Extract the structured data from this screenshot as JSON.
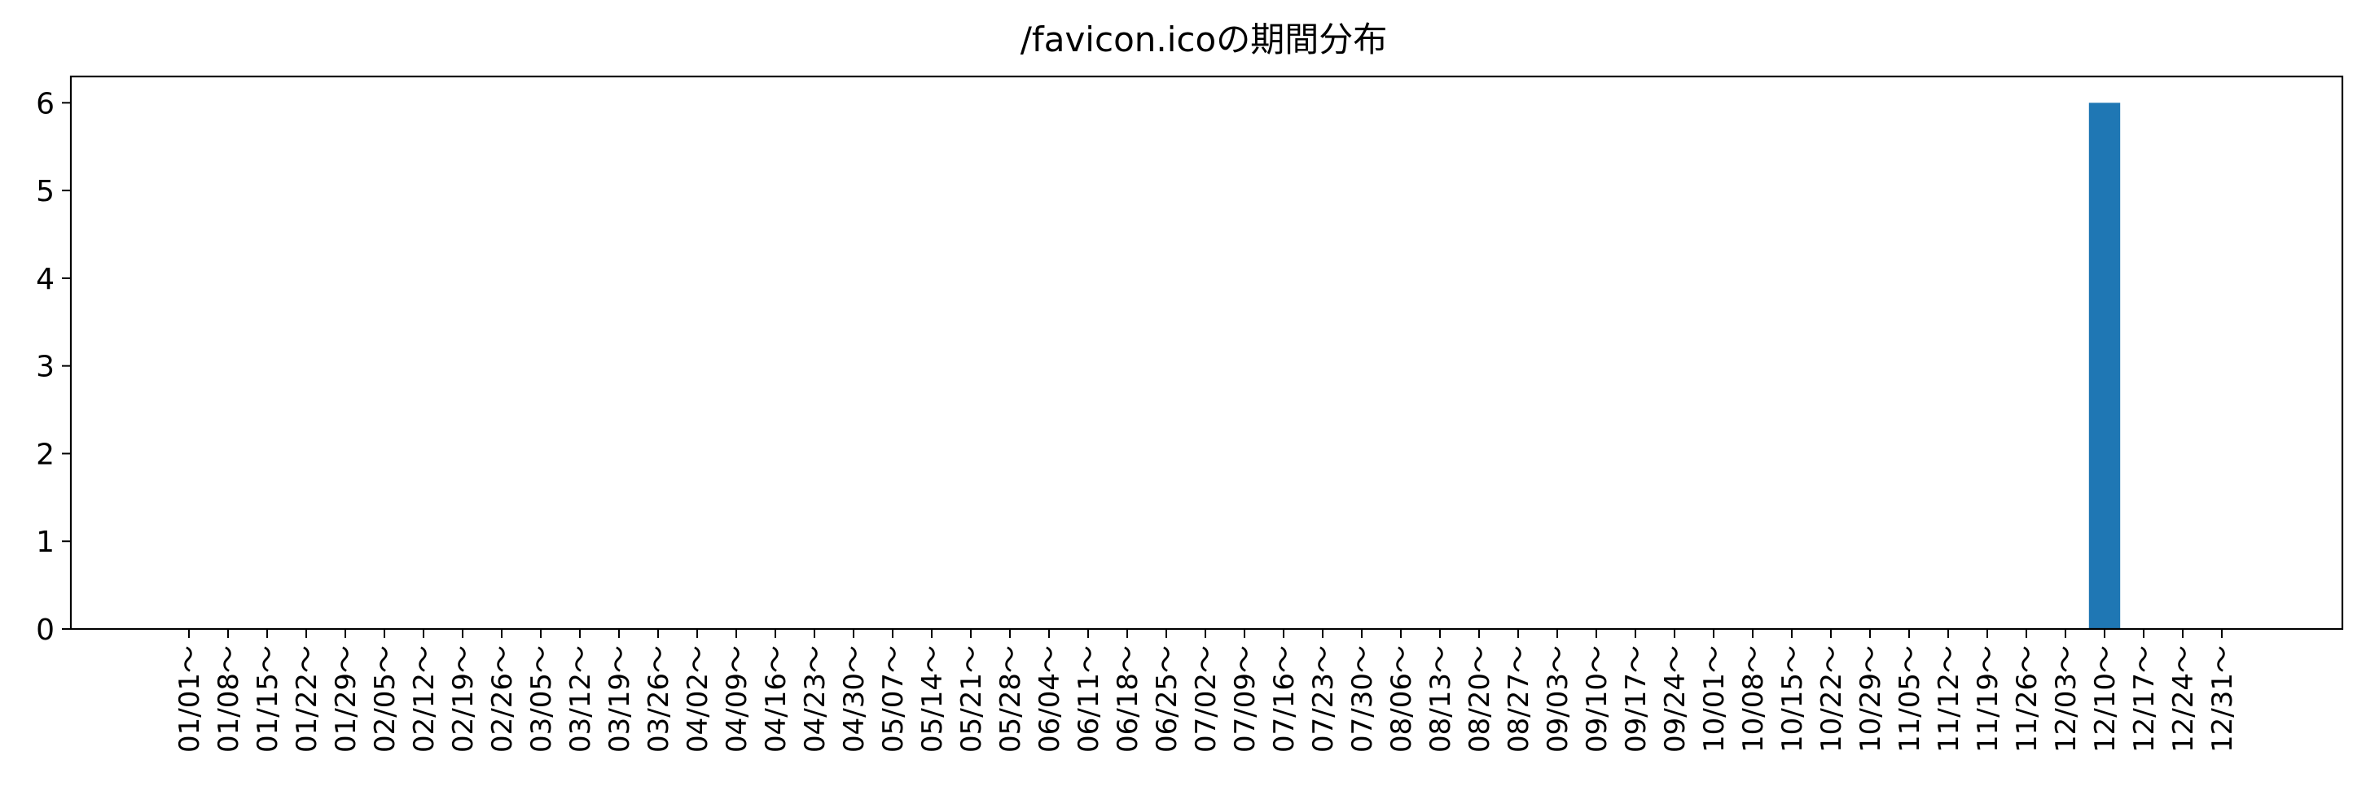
{
  "chart_data": {
    "type": "bar",
    "title": "/favicon.icoの期間分布",
    "xlabel": "",
    "ylabel": "",
    "ylim": [
      0,
      6.3
    ],
    "yticks": [
      0,
      1,
      2,
      3,
      4,
      5,
      6
    ],
    "grid": false,
    "bar_color": "#1f77b4",
    "categories": [
      "01/01～",
      "01/08～",
      "01/15～",
      "01/22～",
      "01/29～",
      "02/05～",
      "02/12～",
      "02/19～",
      "02/26～",
      "03/05～",
      "03/12～",
      "03/19～",
      "03/26～",
      "04/02～",
      "04/09～",
      "04/16～",
      "04/23～",
      "04/30～",
      "05/07～",
      "05/14～",
      "05/21～",
      "05/28～",
      "06/04～",
      "06/11～",
      "06/18～",
      "06/25～",
      "07/02～",
      "07/09～",
      "07/16～",
      "07/23～",
      "07/30～",
      "08/06～",
      "08/13～",
      "08/20～",
      "08/27～",
      "09/03～",
      "09/10～",
      "09/17～",
      "09/24～",
      "10/01～",
      "10/08～",
      "10/15～",
      "10/22～",
      "10/29～",
      "11/05～",
      "11/12～",
      "11/19～",
      "11/26～",
      "12/03～",
      "12/10～",
      "12/17～",
      "12/24～",
      "12/31～"
    ],
    "values": [
      0,
      0,
      0,
      0,
      0,
      0,
      0,
      0,
      0,
      0,
      0,
      0,
      0,
      0,
      0,
      0,
      0,
      0,
      0,
      0,
      0,
      0,
      0,
      0,
      0,
      0,
      0,
      0,
      0,
      0,
      0,
      0,
      0,
      0,
      0,
      0,
      0,
      0,
      0,
      0,
      0,
      0,
      0,
      0,
      0,
      0,
      0,
      0,
      0,
      6,
      0,
      0,
      0
    ]
  }
}
